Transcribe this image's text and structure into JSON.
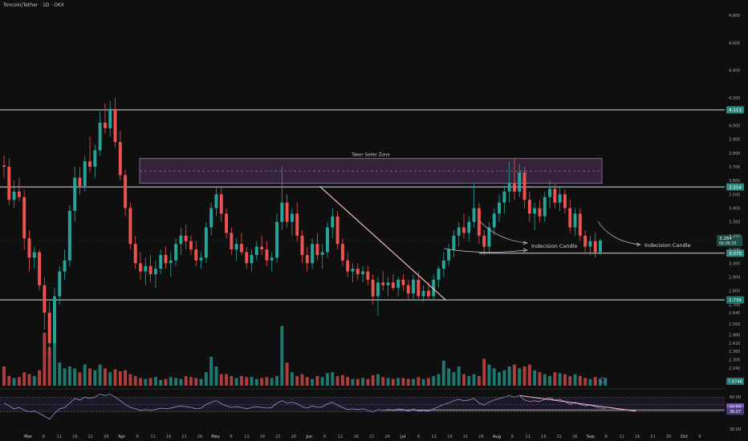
{
  "header": {
    "title": "Toncoin/Tether · 1D · OKX"
  },
  "chart_data": {
    "type": "candlestick",
    "price_axis": {
      "ylim": [
        2.14,
        4.87
      ],
      "ticks": [
        4.8,
        4.6,
        4.4,
        4.2,
        4.0,
        3.9,
        3.8,
        3.7,
        3.6,
        3.5,
        3.4,
        3.3,
        3.2,
        3.1,
        3.0,
        2.9,
        2.8,
        2.7,
        2.64,
        2.56,
        2.48,
        2.42,
        2.36,
        2.3,
        2.24
      ],
      "tick_labels": [
        "4.800",
        "4.600",
        "4.400",
        "4.200",
        "4.000",
        "3.900",
        "3.800",
        "3.700",
        "3.600",
        "3.500",
        "3.400",
        "3.300",
        "3.200",
        "3.100",
        "3.000",
        "2.900",
        "2.800",
        "2.700",
        "2.640",
        "2.560",
        "2.480",
        "2.420",
        "2.360",
        "2.300",
        "2.240"
      ]
    },
    "time_axis": {
      "labels": [
        "Mar",
        "6",
        "11",
        "16",
        "21",
        "26",
        "Apr",
        "6",
        "11",
        "16",
        "21",
        "26",
        "May",
        "6",
        "11",
        "16",
        "21",
        "26",
        "Jun",
        "6",
        "11",
        "16",
        "21",
        "26",
        "Jul",
        "6",
        "11",
        "16",
        "21",
        "26",
        "Aug",
        "6",
        "11",
        "16",
        "21",
        "26",
        "Sep",
        "6",
        "11",
        "16",
        "21",
        "26",
        "Oct",
        "6"
      ]
    },
    "horizontal_levels": [
      {
        "price": 4.113,
        "label": "4.113"
      },
      {
        "price": 3.554,
        "label": "3.554"
      },
      {
        "price": 3.073,
        "label": "3.073"
      },
      {
        "price": 2.734,
        "label": "2.734"
      }
    ],
    "current_price": {
      "label": "3.164",
      "countdown": "06:08:33"
    },
    "volume_label": "7.074K",
    "zone": {
      "label": "Taker Seller Zone",
      "top": 3.76,
      "bottom": 3.58
    },
    "annotations": [
      "Indecision Candle",
      "Indecision Candle"
    ],
    "rsi": {
      "levels": [
        "60.00",
        "40.00",
        "20.00"
      ],
      "value_labels": [
        "44.69",
        "38.07"
      ]
    },
    "candles": [
      {
        "o": 3.71,
        "h": 3.78,
        "l": 3.62,
        "c": 3.7
      },
      {
        "o": 3.7,
        "h": 3.76,
        "l": 3.42,
        "c": 3.46
      },
      {
        "o": 3.46,
        "h": 3.6,
        "l": 3.4,
        "c": 3.52
      },
      {
        "o": 3.52,
        "h": 3.62,
        "l": 3.45,
        "c": 3.48
      },
      {
        "o": 3.48,
        "h": 3.53,
        "l": 3.1,
        "c": 3.18
      },
      {
        "o": 3.18,
        "h": 3.24,
        "l": 2.94,
        "c": 3.04
      },
      {
        "o": 3.04,
        "h": 3.12,
        "l": 2.96,
        "c": 3.08
      },
      {
        "o": 3.08,
        "h": 3.1,
        "l": 2.8,
        "c": 2.84
      },
      {
        "o": 2.84,
        "h": 2.9,
        "l": 2.52,
        "c": 2.64
      },
      {
        "o": 2.64,
        "h": 2.72,
        "l": 2.34,
        "c": 2.42
      },
      {
        "o": 2.42,
        "h": 2.82,
        "l": 2.4,
        "c": 2.76
      },
      {
        "o": 2.76,
        "h": 2.98,
        "l": 2.7,
        "c": 2.94
      },
      {
        "o": 2.94,
        "h": 3.1,
        "l": 2.88,
        "c": 3.02
      },
      {
        "o": 3.02,
        "h": 3.42,
        "l": 2.98,
        "c": 3.38
      },
      {
        "o": 3.38,
        "h": 3.7,
        "l": 3.3,
        "c": 3.62
      },
      {
        "o": 3.62,
        "h": 3.7,
        "l": 3.5,
        "c": 3.56
      },
      {
        "o": 3.56,
        "h": 3.78,
        "l": 3.52,
        "c": 3.74
      },
      {
        "o": 3.74,
        "h": 3.92,
        "l": 3.66,
        "c": 3.7
      },
      {
        "o": 3.7,
        "h": 3.86,
        "l": 3.62,
        "c": 3.82
      },
      {
        "o": 3.82,
        "h": 4.1,
        "l": 3.78,
        "c": 4.02
      },
      {
        "o": 4.02,
        "h": 4.16,
        "l": 3.94,
        "c": 3.98
      },
      {
        "o": 3.98,
        "h": 4.18,
        "l": 3.92,
        "c": 4.12
      },
      {
        "o": 4.12,
        "h": 4.2,
        "l": 3.84,
        "c": 3.88
      },
      {
        "o": 3.88,
        "h": 3.96,
        "l": 3.6,
        "c": 3.64
      },
      {
        "o": 3.64,
        "h": 3.68,
        "l": 3.34,
        "c": 3.4
      },
      {
        "o": 3.4,
        "h": 3.44,
        "l": 3.1,
        "c": 3.14
      },
      {
        "o": 3.14,
        "h": 3.2,
        "l": 2.96,
        "c": 3.0
      },
      {
        "o": 3.0,
        "h": 3.08,
        "l": 2.88,
        "c": 2.94
      },
      {
        "o": 2.94,
        "h": 3.04,
        "l": 2.84,
        "c": 2.98
      },
      {
        "o": 2.98,
        "h": 3.06,
        "l": 2.86,
        "c": 2.92
      },
      {
        "o": 2.92,
        "h": 3.02,
        "l": 2.82,
        "c": 2.96
      },
      {
        "o": 2.96,
        "h": 3.1,
        "l": 2.92,
        "c": 3.06
      },
      {
        "o": 3.06,
        "h": 3.12,
        "l": 2.96,
        "c": 3.0
      },
      {
        "o": 3.0,
        "h": 3.08,
        "l": 2.9,
        "c": 3.02
      },
      {
        "o": 3.02,
        "h": 3.18,
        "l": 2.98,
        "c": 3.14
      },
      {
        "o": 3.14,
        "h": 3.26,
        "l": 3.06,
        "c": 3.2
      },
      {
        "o": 3.2,
        "h": 3.28,
        "l": 3.1,
        "c": 3.16
      },
      {
        "o": 3.16,
        "h": 3.2,
        "l": 3.06,
        "c": 3.1
      },
      {
        "o": 3.1,
        "h": 3.16,
        "l": 2.98,
        "c": 3.02
      },
      {
        "o": 3.02,
        "h": 3.08,
        "l": 2.96,
        "c": 3.04
      },
      {
        "o": 3.04,
        "h": 3.3,
        "l": 3.0,
        "c": 3.26
      },
      {
        "o": 3.26,
        "h": 3.44,
        "l": 3.2,
        "c": 3.4
      },
      {
        "o": 3.4,
        "h": 3.56,
        "l": 3.34,
        "c": 3.5
      },
      {
        "o": 3.5,
        "h": 3.56,
        "l": 3.3,
        "c": 3.36
      },
      {
        "o": 3.36,
        "h": 3.4,
        "l": 3.18,
        "c": 3.22
      },
      {
        "o": 3.22,
        "h": 3.26,
        "l": 3.06,
        "c": 3.1
      },
      {
        "o": 3.1,
        "h": 3.18,
        "l": 3.02,
        "c": 3.14
      },
      {
        "o": 3.14,
        "h": 3.22,
        "l": 3.06,
        "c": 3.08
      },
      {
        "o": 3.08,
        "h": 3.12,
        "l": 2.96,
        "c": 3.0
      },
      {
        "o": 3.0,
        "h": 3.1,
        "l": 2.94,
        "c": 3.06
      },
      {
        "o": 3.06,
        "h": 3.16,
        "l": 3.02,
        "c": 3.12
      },
      {
        "o": 3.12,
        "h": 3.2,
        "l": 3.06,
        "c": 3.1
      },
      {
        "o": 3.1,
        "h": 3.16,
        "l": 2.98,
        "c": 3.02
      },
      {
        "o": 3.02,
        "h": 3.08,
        "l": 2.94,
        "c": 3.04
      },
      {
        "o": 3.04,
        "h": 3.36,
        "l": 3.0,
        "c": 3.3
      },
      {
        "o": 3.3,
        "h": 3.7,
        "l": 3.24,
        "c": 3.44
      },
      {
        "o": 3.44,
        "h": 3.5,
        "l": 3.26,
        "c": 3.3
      },
      {
        "o": 3.3,
        "h": 3.4,
        "l": 3.2,
        "c": 3.36
      },
      {
        "o": 3.36,
        "h": 3.44,
        "l": 3.16,
        "c": 3.2
      },
      {
        "o": 3.2,
        "h": 3.24,
        "l": 3.0,
        "c": 3.06
      },
      {
        "o": 3.06,
        "h": 3.12,
        "l": 2.94,
        "c": 3.0
      },
      {
        "o": 3.0,
        "h": 3.18,
        "l": 2.96,
        "c": 3.14
      },
      {
        "o": 3.14,
        "h": 3.22,
        "l": 3.02,
        "c": 3.06
      },
      {
        "o": 3.06,
        "h": 3.14,
        "l": 2.96,
        "c": 3.08
      },
      {
        "o": 3.08,
        "h": 3.3,
        "l": 3.04,
        "c": 3.26
      },
      {
        "o": 3.26,
        "h": 3.4,
        "l": 3.18,
        "c": 3.34
      },
      {
        "o": 3.34,
        "h": 3.38,
        "l": 3.1,
        "c": 3.14
      },
      {
        "o": 3.14,
        "h": 3.18,
        "l": 2.98,
        "c": 3.02
      },
      {
        "o": 3.02,
        "h": 3.08,
        "l": 2.9,
        "c": 2.94
      },
      {
        "o": 2.94,
        "h": 3.0,
        "l": 2.86,
        "c": 2.96
      },
      {
        "o": 2.96,
        "h": 3.0,
        "l": 2.88,
        "c": 2.92
      },
      {
        "o": 2.92,
        "h": 2.98,
        "l": 2.86,
        "c": 2.94
      },
      {
        "o": 2.94,
        "h": 2.98,
        "l": 2.84,
        "c": 2.88
      },
      {
        "o": 2.88,
        "h": 2.92,
        "l": 2.7,
        "c": 2.76
      },
      {
        "o": 2.76,
        "h": 2.9,
        "l": 2.62,
        "c": 2.86
      },
      {
        "o": 2.86,
        "h": 2.94,
        "l": 2.8,
        "c": 2.84
      },
      {
        "o": 2.84,
        "h": 2.9,
        "l": 2.76,
        "c": 2.86
      },
      {
        "o": 2.86,
        "h": 2.92,
        "l": 2.8,
        "c": 2.82
      },
      {
        "o": 2.82,
        "h": 2.9,
        "l": 2.76,
        "c": 2.88
      },
      {
        "o": 2.88,
        "h": 2.92,
        "l": 2.8,
        "c": 2.84
      },
      {
        "o": 2.84,
        "h": 2.88,
        "l": 2.74,
        "c": 2.78
      },
      {
        "o": 2.78,
        "h": 2.92,
        "l": 2.74,
        "c": 2.88
      },
      {
        "o": 2.88,
        "h": 2.94,
        "l": 2.74,
        "c": 2.76
      },
      {
        "o": 2.76,
        "h": 2.84,
        "l": 2.72,
        "c": 2.8
      },
      {
        "o": 2.8,
        "h": 2.86,
        "l": 2.74,
        "c": 2.76
      },
      {
        "o": 2.76,
        "h": 2.92,
        "l": 2.74,
        "c": 2.88
      },
      {
        "o": 2.88,
        "h": 2.98,
        "l": 2.82,
        "c": 2.96
      },
      {
        "o": 2.96,
        "h": 3.08,
        "l": 2.9,
        "c": 3.02
      },
      {
        "o": 3.02,
        "h": 3.14,
        "l": 2.98,
        "c": 3.1
      },
      {
        "o": 3.1,
        "h": 3.24,
        "l": 3.04,
        "c": 3.2
      },
      {
        "o": 3.2,
        "h": 3.3,
        "l": 3.12,
        "c": 3.26
      },
      {
        "o": 3.26,
        "h": 3.36,
        "l": 3.18,
        "c": 3.22
      },
      {
        "o": 3.22,
        "h": 3.34,
        "l": 3.16,
        "c": 3.3
      },
      {
        "o": 3.3,
        "h": 3.58,
        "l": 3.26,
        "c": 3.4
      },
      {
        "o": 3.4,
        "h": 3.44,
        "l": 3.14,
        "c": 3.2
      },
      {
        "o": 3.2,
        "h": 3.24,
        "l": 3.06,
        "c": 3.12
      },
      {
        "o": 3.12,
        "h": 3.3,
        "l": 3.08,
        "c": 3.26
      },
      {
        "o": 3.26,
        "h": 3.4,
        "l": 3.2,
        "c": 3.36
      },
      {
        "o": 3.36,
        "h": 3.5,
        "l": 3.3,
        "c": 3.44
      },
      {
        "o": 3.44,
        "h": 3.56,
        "l": 3.36,
        "c": 3.52
      },
      {
        "o": 3.52,
        "h": 3.74,
        "l": 3.44,
        "c": 3.58
      },
      {
        "o": 3.58,
        "h": 3.76,
        "l": 3.46,
        "c": 3.52
      },
      {
        "o": 3.52,
        "h": 3.72,
        "l": 3.48,
        "c": 3.66
      },
      {
        "o": 3.66,
        "h": 3.7,
        "l": 3.4,
        "c": 3.46
      },
      {
        "o": 3.46,
        "h": 3.52,
        "l": 3.3,
        "c": 3.36
      },
      {
        "o": 3.36,
        "h": 3.44,
        "l": 3.24,
        "c": 3.4
      },
      {
        "o": 3.4,
        "h": 3.46,
        "l": 3.3,
        "c": 3.34
      },
      {
        "o": 3.34,
        "h": 3.52,
        "l": 3.3,
        "c": 3.48
      },
      {
        "o": 3.48,
        "h": 3.6,
        "l": 3.4,
        "c": 3.54
      },
      {
        "o": 3.54,
        "h": 3.58,
        "l": 3.4,
        "c": 3.44
      },
      {
        "o": 3.44,
        "h": 3.56,
        "l": 3.38,
        "c": 3.5
      },
      {
        "o": 3.5,
        "h": 3.54,
        "l": 3.36,
        "c": 3.4
      },
      {
        "o": 3.4,
        "h": 3.46,
        "l": 3.22,
        "c": 3.26
      },
      {
        "o": 3.26,
        "h": 3.4,
        "l": 3.2,
        "c": 3.36
      },
      {
        "o": 3.36,
        "h": 3.4,
        "l": 3.16,
        "c": 3.2
      },
      {
        "o": 3.2,
        "h": 3.24,
        "l": 3.08,
        "c": 3.12
      },
      {
        "o": 3.12,
        "h": 3.2,
        "l": 3.06,
        "c": 3.16
      },
      {
        "o": 3.16,
        "h": 3.22,
        "l": 3.04,
        "c": 3.08
      },
      {
        "o": 3.08,
        "h": 3.18,
        "l": 3.06,
        "c": 3.164
      }
    ],
    "volumes": [
      0.2,
      0.1,
      0.08,
      0.09,
      0.14,
      0.12,
      0.1,
      0.16,
      0.55,
      0.4,
      0.65,
      0.24,
      0.18,
      0.2,
      0.18,
      0.14,
      0.22,
      0.18,
      0.16,
      0.22,
      0.18,
      0.14,
      0.17,
      0.15,
      0.16,
      0.12,
      0.1,
      0.08,
      0.07,
      0.08,
      0.09,
      0.06,
      0.07,
      0.09,
      0.08,
      0.07,
      0.1,
      0.09,
      0.08,
      0.07,
      0.14,
      0.3,
      0.2,
      0.12,
      0.12,
      0.1,
      0.08,
      0.1,
      0.09,
      0.09,
      0.07,
      0.08,
      0.09,
      0.08,
      0.1,
      0.62,
      0.24,
      0.14,
      0.1,
      0.12,
      0.09,
      0.07,
      0.1,
      0.09,
      0.13,
      0.14,
      0.1,
      0.11,
      0.09,
      0.07,
      0.07,
      0.08,
      0.07,
      0.11,
      0.12,
      0.09,
      0.08,
      0.07,
      0.08,
      0.08,
      0.07,
      0.07,
      0.09,
      0.07,
      0.08,
      0.1,
      0.12,
      0.26,
      0.18,
      0.14,
      0.2,
      0.12,
      0.1,
      0.12,
      0.1,
      0.28,
      0.22,
      0.18,
      0.14,
      0.16,
      0.2,
      0.22,
      0.18,
      0.2,
      0.22,
      0.16,
      0.14,
      0.12,
      0.1,
      0.14,
      0.13,
      0.12,
      0.1,
      0.12,
      0.1,
      0.08,
      0.07,
      0.09,
      0.07,
      0.08
    ],
    "rsi_values": [
      52,
      48,
      44,
      46,
      42,
      40,
      41,
      38,
      34,
      30,
      38,
      44,
      46,
      52,
      58,
      56,
      60,
      58,
      60,
      64,
      62,
      64,
      60,
      55,
      50,
      46,
      44,
      42,
      43,
      42,
      43,
      45,
      44,
      45,
      47,
      48,
      47,
      46,
      44,
      45,
      50,
      53,
      55,
      51,
      48,
      46,
      47,
      46,
      44,
      46,
      47,
      46,
      45,
      46,
      52,
      55,
      52,
      53,
      51,
      47,
      45,
      48,
      46,
      47,
      51,
      53,
      49,
      46,
      43,
      44,
      43,
      44,
      42,
      40,
      43,
      42,
      43,
      42,
      44,
      43,
      41,
      44,
      41,
      42,
      41,
      44,
      47,
      50,
      52,
      55,
      57,
      55,
      56,
      58,
      52,
      49,
      53,
      56,
      58,
      60,
      62,
      60,
      62,
      56,
      54,
      55,
      54,
      57,
      59,
      56,
      57,
      54,
      50,
      53,
      50,
      48,
      49,
      47,
      45,
      44.69
    ]
  }
}
